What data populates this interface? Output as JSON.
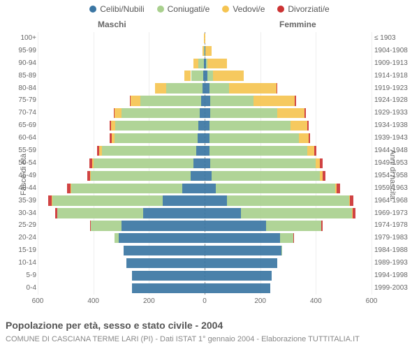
{
  "legend": [
    {
      "label": "Celibi/Nubili",
      "color": "#3b76a3"
    },
    {
      "label": "Coniugati/e",
      "color": "#a9d08e"
    },
    {
      "label": "Vedovi/e",
      "color": "#f5c451"
    },
    {
      "label": "Divorziati/e",
      "color": "#cc3333"
    }
  ],
  "headers": {
    "male": "Maschi",
    "female": "Femmine"
  },
  "axis_titles": {
    "left": "Fasce di età",
    "right": "Anni di nascita"
  },
  "x_axis": {
    "max": 600,
    "ticks": [
      600,
      400,
      200,
      0,
      200,
      400,
      600
    ]
  },
  "title": "Popolazione per età, sesso e stato civile - 2004",
  "subtitle": "COMUNE DI CASCIANA TERME LARI (PI) - Dati ISTAT 1° gennaio 2004 - Elaborazione TUTTITALIA.IT",
  "colors": {
    "single": "#3b76a3",
    "married": "#a9d08e",
    "widowed": "#f5c451",
    "divorced": "#cc3333"
  },
  "row_height": 17.9,
  "rows": [
    {
      "age": "100+",
      "birth": "≤ 1903",
      "m": {
        "s": 0,
        "c": 0,
        "w": 3,
        "d": 0
      },
      "f": {
        "s": 0,
        "c": 0,
        "w": 3,
        "d": 0
      }
    },
    {
      "age": "95-99",
      "birth": "1904-1908",
      "m": {
        "s": 0,
        "c": 2,
        "w": 5,
        "d": 0
      },
      "f": {
        "s": 2,
        "c": 0,
        "w": 22,
        "d": 0
      }
    },
    {
      "age": "90-94",
      "birth": "1909-1913",
      "m": {
        "s": 2,
        "c": 20,
        "w": 18,
        "d": 0
      },
      "f": {
        "s": 4,
        "c": 6,
        "w": 70,
        "d": 0
      }
    },
    {
      "age": "85-89",
      "birth": "1914-1918",
      "m": {
        "s": 4,
        "c": 45,
        "w": 25,
        "d": 0
      },
      "f": {
        "s": 10,
        "c": 20,
        "w": 110,
        "d": 0
      }
    },
    {
      "age": "80-84",
      "birth": "1919-1923",
      "m": {
        "s": 8,
        "c": 130,
        "w": 40,
        "d": 0
      },
      "f": {
        "s": 18,
        "c": 70,
        "w": 170,
        "d": 2
      }
    },
    {
      "age": "75-79",
      "birth": "1924-1928",
      "m": {
        "s": 12,
        "c": 220,
        "w": 35,
        "d": 2
      },
      "f": {
        "s": 20,
        "c": 155,
        "w": 150,
        "d": 3
      }
    },
    {
      "age": "70-74",
      "birth": "1929-1933",
      "m": {
        "s": 18,
        "c": 280,
        "w": 25,
        "d": 3
      },
      "f": {
        "s": 20,
        "c": 240,
        "w": 100,
        "d": 5
      }
    },
    {
      "age": "65-69",
      "birth": "1934-1938",
      "m": {
        "s": 22,
        "c": 300,
        "w": 15,
        "d": 5
      },
      "f": {
        "s": 18,
        "c": 290,
        "w": 60,
        "d": 6
      }
    },
    {
      "age": "60-64",
      "birth": "1939-1943",
      "m": {
        "s": 25,
        "c": 300,
        "w": 10,
        "d": 6
      },
      "f": {
        "s": 18,
        "c": 320,
        "w": 35,
        "d": 7
      }
    },
    {
      "age": "55-59",
      "birth": "1944-1948",
      "m": {
        "s": 30,
        "c": 340,
        "w": 8,
        "d": 8
      },
      "f": {
        "s": 18,
        "c": 350,
        "w": 25,
        "d": 8
      }
    },
    {
      "age": "50-54",
      "birth": "1949-1953",
      "m": {
        "s": 40,
        "c": 360,
        "w": 5,
        "d": 10
      },
      "f": {
        "s": 20,
        "c": 380,
        "w": 15,
        "d": 10
      }
    },
    {
      "age": "45-49",
      "birth": "1954-1958",
      "m": {
        "s": 50,
        "c": 360,
        "w": 3,
        "d": 10
      },
      "f": {
        "s": 25,
        "c": 390,
        "w": 10,
        "d": 10
      }
    },
    {
      "age": "40-44",
      "birth": "1959-1963",
      "m": {
        "s": 80,
        "c": 400,
        "w": 2,
        "d": 12
      },
      "f": {
        "s": 40,
        "c": 430,
        "w": 5,
        "d": 12
      }
    },
    {
      "age": "35-39",
      "birth": "1964-1968",
      "m": {
        "s": 150,
        "c": 400,
        "w": 1,
        "d": 12
      },
      "f": {
        "s": 80,
        "c": 440,
        "w": 3,
        "d": 12
      }
    },
    {
      "age": "30-34",
      "birth": "1969-1973",
      "m": {
        "s": 220,
        "c": 310,
        "w": 0,
        "d": 8
      },
      "f": {
        "s": 130,
        "c": 400,
        "w": 2,
        "d": 10
      }
    },
    {
      "age": "25-29",
      "birth": "1974-1978",
      "m": {
        "s": 300,
        "c": 110,
        "w": 0,
        "d": 3
      },
      "f": {
        "s": 220,
        "c": 200,
        "w": 0,
        "d": 5
      }
    },
    {
      "age": "20-24",
      "birth": "1979-1983",
      "m": {
        "s": 310,
        "c": 15,
        "w": 0,
        "d": 0
      },
      "f": {
        "s": 270,
        "c": 50,
        "w": 0,
        "d": 1
      }
    },
    {
      "age": "15-19",
      "birth": "1984-1988",
      "m": {
        "s": 290,
        "c": 0,
        "w": 0,
        "d": 0
      },
      "f": {
        "s": 275,
        "c": 2,
        "w": 0,
        "d": 0
      }
    },
    {
      "age": "10-14",
      "birth": "1989-1993",
      "m": {
        "s": 280,
        "c": 0,
        "w": 0,
        "d": 0
      },
      "f": {
        "s": 260,
        "c": 0,
        "w": 0,
        "d": 0
      }
    },
    {
      "age": "5-9",
      "birth": "1994-1998",
      "m": {
        "s": 260,
        "c": 0,
        "w": 0,
        "d": 0
      },
      "f": {
        "s": 240,
        "c": 0,
        "w": 0,
        "d": 0
      }
    },
    {
      "age": "0-4",
      "birth": "1999-2003",
      "m": {
        "s": 260,
        "c": 0,
        "w": 0,
        "d": 0
      },
      "f": {
        "s": 235,
        "c": 0,
        "w": 0,
        "d": 0
      }
    }
  ]
}
